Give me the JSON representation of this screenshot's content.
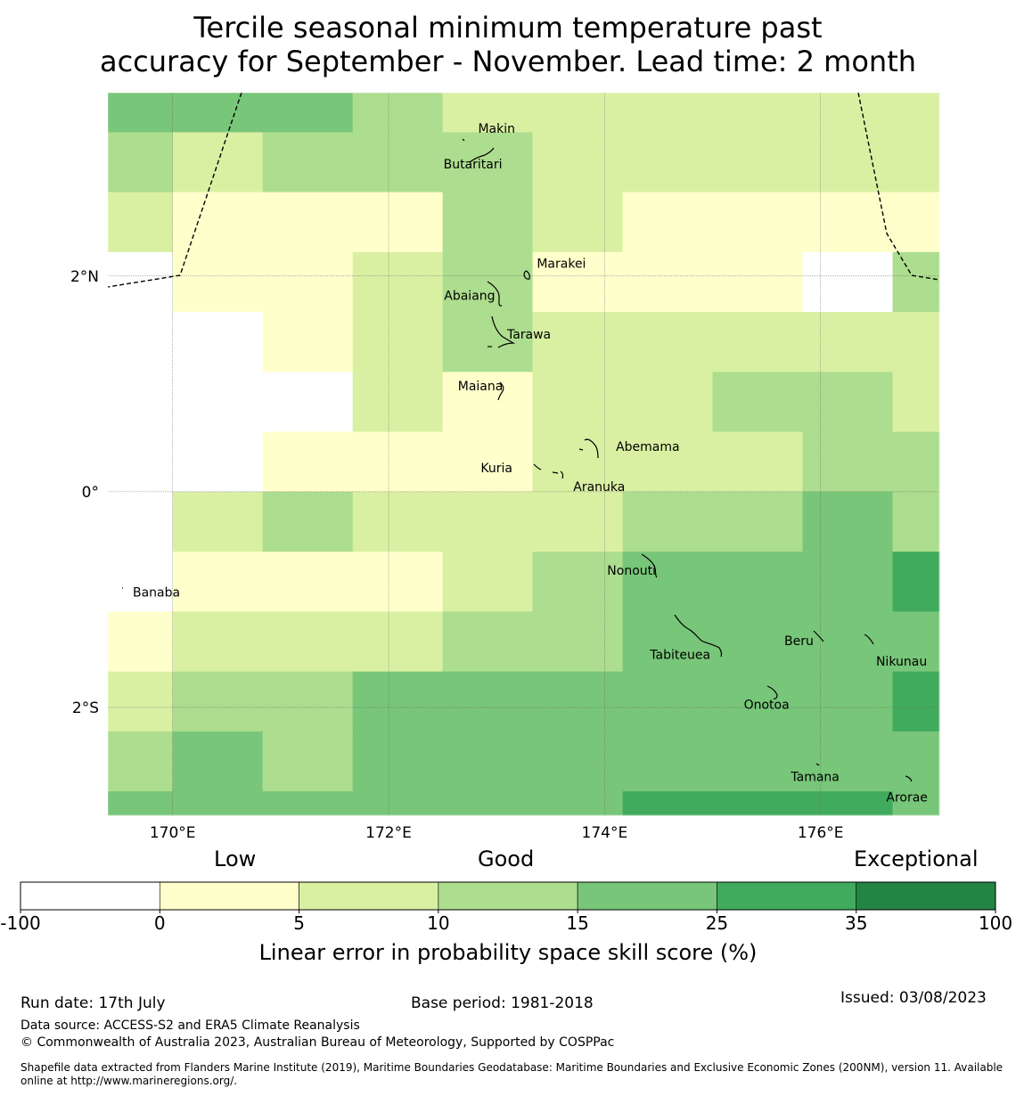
{
  "title": {
    "line1": "Tercile seasonal minimum temperature past",
    "line2": "accuracy for September - November. Lead time: 2 month"
  },
  "map": {
    "lon_ticks": [
      "170°E",
      "172°E",
      "174°E",
      "176°E"
    ],
    "lat_ticks": [
      "2°N",
      "0°",
      "2°S"
    ],
    "extent": {
      "lon": [
        169.4,
        177.1
      ],
      "lat": [
        -3.0,
        3.7
      ]
    },
    "islands": [
      {
        "name": "Makin",
        "lon": 173.0,
        "lat": 3.37
      },
      {
        "name": "Butaritari",
        "lon": 172.78,
        "lat": 3.04
      },
      {
        "name": "Marakei",
        "lon": 173.6,
        "lat": 2.12
      },
      {
        "name": "Abaiang",
        "lon": 172.75,
        "lat": 1.82
      },
      {
        "name": "Tarawa",
        "lon": 173.3,
        "lat": 1.46
      },
      {
        "name": "Maiana",
        "lon": 172.85,
        "lat": 0.98
      },
      {
        "name": "Abemama",
        "lon": 174.4,
        "lat": 0.42
      },
      {
        "name": "Kuria",
        "lon": 173.0,
        "lat": 0.22
      },
      {
        "name": "Aranuka",
        "lon": 173.95,
        "lat": 0.05
      },
      {
        "name": "Nonouti",
        "lon": 174.25,
        "lat": -0.73
      },
      {
        "name": "Banaba",
        "lon": 169.85,
        "lat": -0.93
      },
      {
        "name": "Beru",
        "lon": 175.8,
        "lat": -1.38
      },
      {
        "name": "Tabiteuea",
        "lon": 174.7,
        "lat": -1.51
      },
      {
        "name": "Nikunau",
        "lon": 176.75,
        "lat": -1.57
      },
      {
        "name": "Onotoa",
        "lon": 175.5,
        "lat": -1.97
      },
      {
        "name": "Tamana",
        "lon": 175.95,
        "lat": -2.64
      },
      {
        "name": "Arorae",
        "lon": 176.8,
        "lat": -2.83
      }
    ]
  },
  "chart_data": {
    "type": "heatmap",
    "variable": "Linear error in probability space skill score (%)",
    "levels": [
      -100,
      0,
      5,
      10,
      15,
      25,
      35,
      100
    ],
    "level_colors": [
      "#ffffff",
      "#ffffcc",
      "#d9f0a3",
      "#addd8e",
      "#78c679",
      "#41ab5d",
      "#238443"
    ],
    "lon_edges": [
      169.4,
      170.0,
      170.833,
      171.667,
      172.5,
      173.333,
      174.167,
      175.0,
      175.833,
      176.667,
      177.1
    ],
    "lat_edges": [
      3.7,
      3.333,
      2.778,
      2.222,
      1.667,
      1.111,
      0.556,
      0.0,
      -0.556,
      -1.111,
      -1.667,
      -2.222,
      -2.778,
      -3.0
    ],
    "class_index_grid": [
      [
        4,
        4,
        4,
        3,
        2,
        2,
        2,
        2,
        2,
        2
      ],
      [
        3,
        2,
        3,
        3,
        3,
        2,
        2,
        2,
        2,
        2
      ],
      [
        2,
        1,
        1,
        1,
        3,
        2,
        1,
        1,
        1,
        1
      ],
      [
        0,
        1,
        1,
        2,
        3,
        1,
        1,
        1,
        0,
        3
      ],
      [
        0,
        0,
        1,
        2,
        3,
        2,
        2,
        2,
        2,
        2
      ],
      [
        0,
        0,
        0,
        2,
        1,
        2,
        2,
        3,
        3,
        2
      ],
      [
        0,
        0,
        1,
        1,
        1,
        2,
        2,
        2,
        3,
        3
      ],
      [
        0,
        2,
        3,
        2,
        2,
        2,
        3,
        3,
        4,
        3
      ],
      [
        0,
        1,
        1,
        1,
        2,
        3,
        4,
        4,
        4,
        5
      ],
      [
        1,
        2,
        2,
        2,
        3,
        3,
        4,
        4,
        4,
        4
      ],
      [
        2,
        3,
        3,
        4,
        4,
        4,
        4,
        4,
        4,
        5
      ],
      [
        3,
        4,
        3,
        4,
        4,
        4,
        4,
        4,
        4,
        4
      ],
      [
        4,
        4,
        4,
        4,
        4,
        4,
        5,
        5,
        5,
        4
      ]
    ]
  },
  "colorbar": {
    "category_labels": [
      "Low",
      "Good",
      "Exceptional"
    ],
    "tick_labels": [
      "-100",
      "0",
      "5",
      "10",
      "15",
      "25",
      "35",
      "100"
    ],
    "axis_label": "Linear error in probability space skill score (%)"
  },
  "footer": {
    "run_date": "Run date: 17th July",
    "base_period": "Base period: 1981-2018",
    "issued": "Issued: 03/08/2023",
    "data_source": "Data source: ACCESS-S2 and ERA5 Climate Reanalysis",
    "copyright": "© Commonwealth of Australia 2023, Australian Bureau of Meteorology, Supported by COSPPac",
    "shapefile_note": "Shapefile data extracted from Flanders Marine Institute (2019), Maritime Boundaries Geodatabase: Maritime Boundaries and Exclusive Economic Zones (200NM), version 11. Available online at http://www.marineregions.org/."
  }
}
